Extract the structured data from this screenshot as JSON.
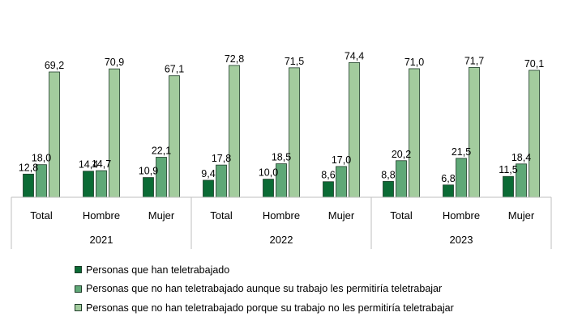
{
  "chart_data": {
    "type": "bar",
    "groups": [
      {
        "year": "2021",
        "categories": [
          "Total",
          "Hombre",
          "Mujer"
        ]
      },
      {
        "year": "2022",
        "categories": [
          "Total",
          "Hombre",
          "Mujer"
        ]
      },
      {
        "year": "2023",
        "categories": [
          "Total",
          "Hombre",
          "Mujer"
        ]
      }
    ],
    "series": [
      {
        "name": "Personas que han teletrabajado",
        "color": "#0b6b35",
        "values": [
          12.8,
          14.4,
          10.9,
          9.4,
          10.0,
          8.6,
          8.8,
          6.8,
          11.5
        ],
        "labels": [
          "12,8",
          "14,4",
          "10,9",
          "9,4",
          "10,0",
          "8,6",
          "8,8",
          "6,8",
          "11,5"
        ]
      },
      {
        "name": "Personas que no han teletrabajado aunque su trabajo les permitiría teletrabajar",
        "color": "#5fa877",
        "values": [
          18.0,
          14.7,
          22.1,
          17.8,
          18.5,
          17.0,
          20.2,
          21.5,
          18.4
        ],
        "labels": [
          "18,0",
          "14,7",
          "22,1",
          "17,8",
          "18,5",
          "17,0",
          "20,2",
          "21,5",
          "18,4"
        ]
      },
      {
        "name": "Personas que no han teletrabajado porque su trabajo no les permitiría teletrabajar",
        "color": "#a3cc9e",
        "values": [
          69.2,
          70.9,
          67.1,
          72.8,
          71.5,
          74.4,
          71.0,
          71.7,
          70.1
        ],
        "labels": [
          "69,2",
          "70,9",
          "67,1",
          "72,8",
          "71,5",
          "74,4",
          "71,0",
          "71,7",
          "70,1"
        ]
      }
    ],
    "ylim": [
      0,
      100
    ],
    "grid": false,
    "legend_position": "bottom"
  }
}
